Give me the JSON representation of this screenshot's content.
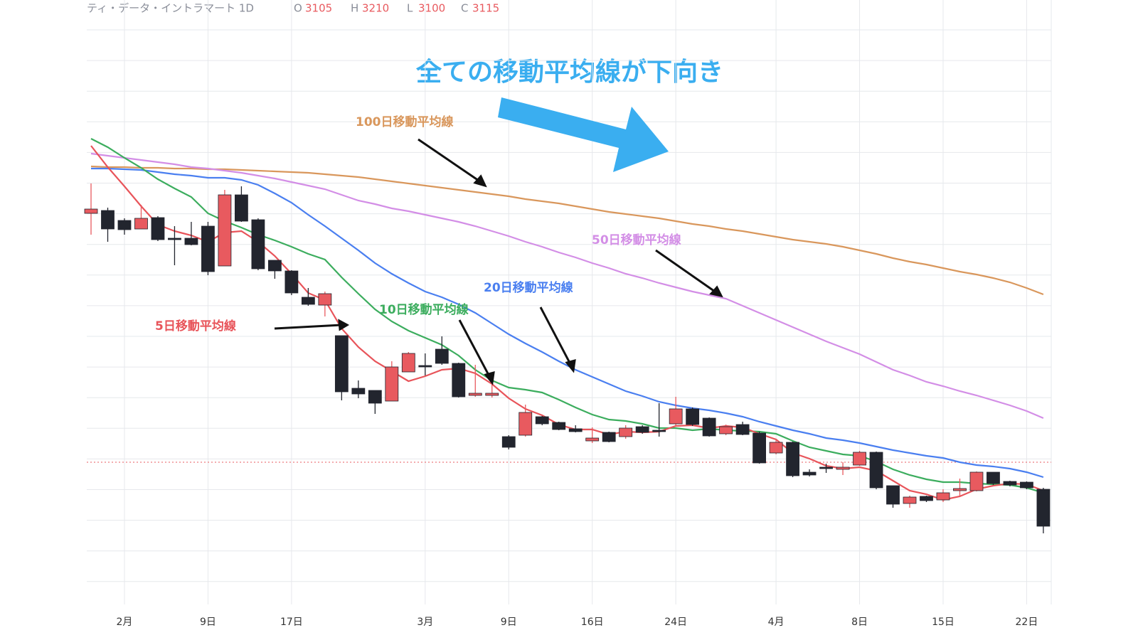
{
  "chart_data": {
    "type": "candlestick",
    "title": "全ての移動平均線が下向き",
    "symbol": "ティ・データ・イントラマート 1D",
    "ohlc": [
      {
        "label": "O",
        "value": 3105
      },
      {
        "label": "H",
        "value": 3210
      },
      {
        "label": "L",
        "value": 3100
      },
      {
        "label": "C",
        "value": 3115
      }
    ],
    "categories": [
      null,
      null,
      "2月",
      null,
      null,
      null,
      null,
      "9日",
      null,
      null,
      null,
      null,
      "17日",
      null,
      null,
      null,
      null,
      null,
      null,
      null,
      "3月",
      null,
      null,
      null,
      null,
      "9日",
      null,
      null,
      null,
      null,
      "16日",
      null,
      null,
      null,
      null,
      "24日",
      null,
      null,
      null,
      null,
      null,
      "4月",
      null,
      null,
      null,
      null,
      "8日",
      null,
      null,
      null,
      null,
      "15日",
      null,
      null,
      null,
      null,
      "22日",
      null
    ],
    "open": [
      3815,
      3823,
      3795,
      3771,
      3803,
      3745,
      3745,
      3779,
      3667,
      3867,
      3797,
      3683,
      3653,
      3579,
      3557,
      3471,
      3323,
      3317,
      3287,
      3369,
      3387,
      3433,
      3393,
      3303,
      3303,
      3187,
      3191,
      3243,
      3227,
      3209,
      3175,
      3199,
      3187,
      3215,
      3205,
      3223,
      3265,
      3239,
      3195,
      3221,
      3197,
      3141,
      3171,
      3087,
      3101,
      3095,
      3107,
      3143,
      3049,
      2999,
      3019,
      3009,
      3035,
      3035,
      3087,
      3061,
      3059,
      3039
    ],
    "high": [
      3899,
      3831,
      3801,
      3839,
      3807,
      3779,
      3791,
      3791,
      3881,
      3891,
      3801,
      3683,
      3655,
      3605,
      3595,
      3471,
      3345,
      3317,
      3399,
      3425,
      3421,
      3469,
      3395,
      3389,
      3361,
      3191,
      3277,
      3245,
      3229,
      3219,
      3213,
      3201,
      3219,
      3219,
      3281,
      3299,
      3269,
      3241,
      3221,
      3229,
      3201,
      3179,
      3173,
      3095,
      3111,
      3115,
      3147,
      3145,
      3049,
      3021,
      3021,
      3039,
      3069,
      3089,
      3087,
      3063,
      3061,
      3043
    ],
    "low": [
      3755,
      3735,
      3755,
      3771,
      3737,
      3669,
      3725,
      3641,
      3667,
      3791,
      3655,
      3631,
      3585,
      3555,
      3525,
      3289,
      3295,
      3251,
      3287,
      3369,
      3359,
      3389,
      3297,
      3299,
      3297,
      3151,
      3187,
      3219,
      3205,
      3199,
      3169,
      3171,
      3181,
      3195,
      3187,
      3219,
      3217,
      3187,
      3191,
      3191,
      3111,
      3137,
      3073,
      3075,
      3085,
      3079,
      3105,
      3039,
      2987,
      2987,
      3003,
      3003,
      3021,
      3033,
      3051,
      3047,
      3039,
      2915
    ],
    "close": [
      3827,
      3771,
      3769,
      3801,
      3741,
      3743,
      3727,
      3651,
      3867,
      3793,
      3659,
      3653,
      3591,
      3559,
      3589,
      3313,
      3307,
      3281,
      3383,
      3421,
      3383,
      3393,
      3299,
      3309,
      3309,
      3157,
      3255,
      3223,
      3207,
      3201,
      3183,
      3173,
      3211,
      3199,
      3201,
      3265,
      3221,
      3189,
      3215,
      3193,
      3113,
      3171,
      3077,
      3079,
      3097,
      3101,
      3143,
      3043,
      2997,
      3017,
      3007,
      3029,
      3041,
      3087,
      3055,
      3051,
      3043,
      2935
    ],
    "up_color": "#e85a5f",
    "down_color": "#22252e",
    "series": [
      {
        "name": "100日移動平均線",
        "color": "#d9975c",
        "values": [
          3947,
          3945,
          3945,
          3943,
          3943,
          3941,
          3941,
          3939,
          3939,
          3937,
          3935,
          3933,
          3931,
          3929,
          3925,
          3921,
          3917,
          3911,
          3905,
          3899,
          3893,
          3887,
          3881,
          3875,
          3869,
          3863,
          3855,
          3849,
          3843,
          3835,
          3827,
          3819,
          3813,
          3807,
          3801,
          3793,
          3785,
          3779,
          3771,
          3765,
          3757,
          3749,
          3741,
          3735,
          3729,
          3721,
          3711,
          3701,
          3689,
          3679,
          3671,
          3661,
          3651,
          3643,
          3633,
          3621,
          3605,
          3587
        ]
      },
      {
        "name": "50日移動平均線",
        "color": "#d38ee6",
        "values": [
          3983,
          3977,
          3971,
          3965,
          3959,
          3953,
          3945,
          3941,
          3935,
          3929,
          3921,
          3913,
          3903,
          3893,
          3883,
          3867,
          3851,
          3841,
          3829,
          3821,
          3811,
          3801,
          3791,
          3779,
          3765,
          3751,
          3735,
          3721,
          3705,
          3691,
          3675,
          3661,
          3645,
          3633,
          3619,
          3607,
          3595,
          3585,
          3575,
          3555,
          3535,
          3515,
          3495,
          3475,
          3455,
          3437,
          3419,
          3397,
          3375,
          3359,
          3341,
          3329,
          3315,
          3303,
          3289,
          3275,
          3259,
          3239
        ]
      },
      {
        "name": "20日移動平均線",
        "color": "#4a7ff0",
        "values": [
          3941,
          3941,
          3939,
          3937,
          3931,
          3925,
          3921,
          3915,
          3915,
          3909,
          3895,
          3871,
          3845,
          3811,
          3779,
          3745,
          3711,
          3675,
          3645,
          3619,
          3595,
          3579,
          3559,
          3535,
          3505,
          3475,
          3449,
          3425,
          3399,
          3375,
          3355,
          3335,
          3315,
          3301,
          3285,
          3275,
          3267,
          3261,
          3253,
          3243,
          3229,
          3217,
          3205,
          3195,
          3183,
          3177,
          3169,
          3159,
          3149,
          3141,
          3133,
          3127,
          3115,
          3107,
          3103,
          3097,
          3087,
          3073
        ]
      },
      {
        "name": "10日移動平均線",
        "color": "#3cad5e",
        "values": [
          4025,
          4001,
          3971,
          3943,
          3911,
          3885,
          3861,
          3815,
          3793,
          3775,
          3755,
          3739,
          3721,
          3701,
          3685,
          3635,
          3589,
          3545,
          3511,
          3485,
          3465,
          3445,
          3415,
          3375,
          3345,
          3325,
          3319,
          3311,
          3291,
          3269,
          3249,
          3235,
          3231,
          3223,
          3211,
          3211,
          3205,
          3209,
          3205,
          3203,
          3201,
          3195,
          3175,
          3157,
          3147,
          3137,
          3133,
          3117,
          3095,
          3079,
          3067,
          3059,
          3059,
          3055,
          3053,
          3051,
          3043,
          3029
        ]
      },
      {
        "name": "5日移動平均線",
        "color": "#e8545a",
        "values": [
          4005,
          3945,
          3891,
          3835,
          3783,
          3765,
          3753,
          3735,
          3761,
          3765,
          3735,
          3695,
          3645,
          3591,
          3571,
          3491,
          3439,
          3399,
          3371,
          3343,
          3357,
          3375,
          3379,
          3365,
          3335,
          3295,
          3265,
          3247,
          3221,
          3207,
          3207,
          3193,
          3201,
          3199,
          3201,
          3217,
          3219,
          3211,
          3217,
          3213,
          3195,
          3179,
          3141,
          3125,
          3105,
          3097,
          3101,
          3091,
          3063,
          3035,
          3025,
          3009,
          3019,
          3039,
          3049,
          3055,
          3053,
          3035
        ]
      }
    ],
    "ylim": [
      2715,
      4415
    ],
    "grid": true
  }
}
